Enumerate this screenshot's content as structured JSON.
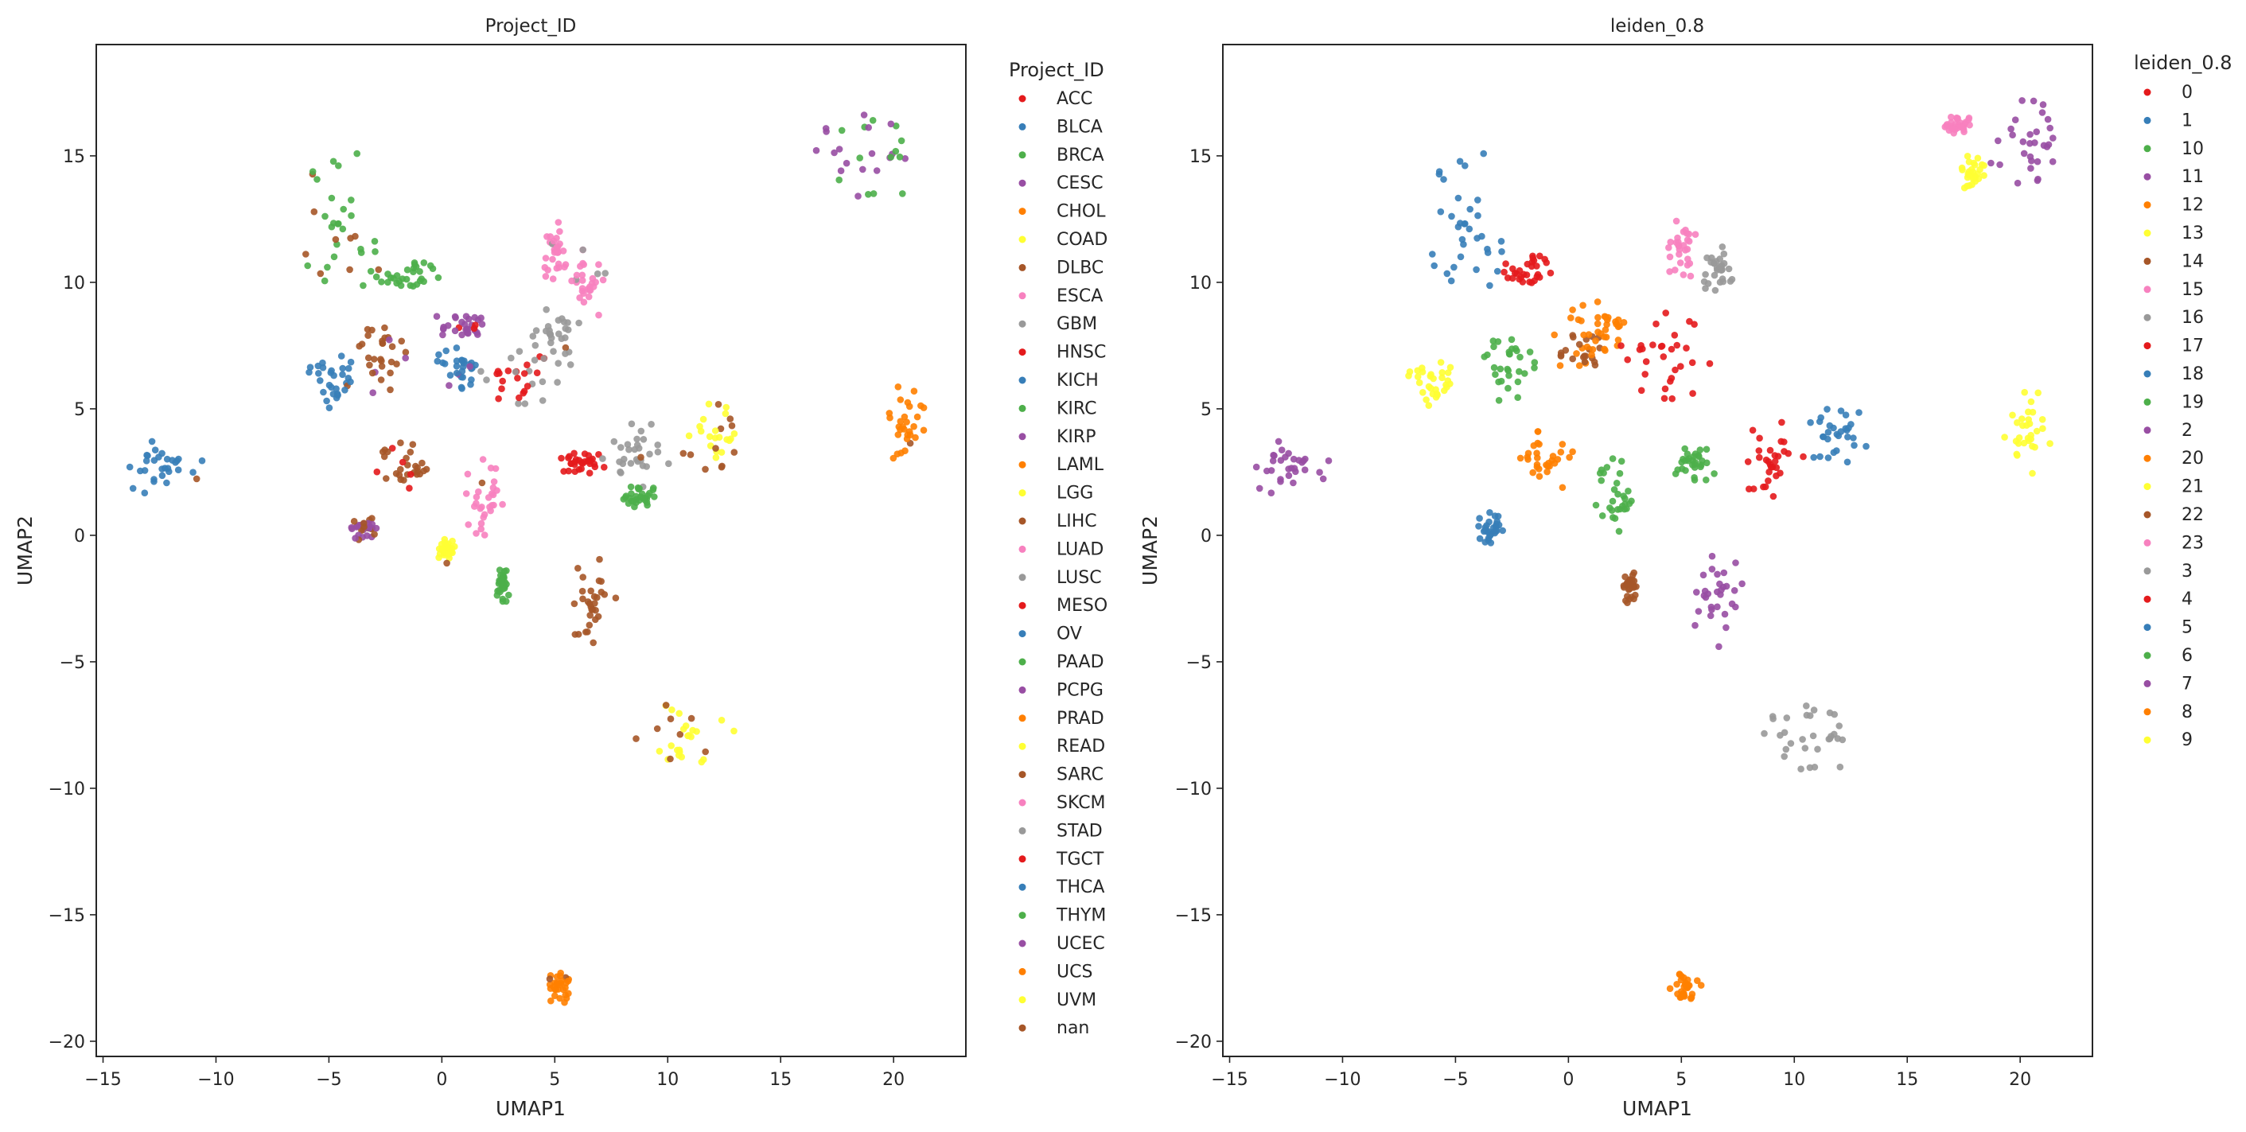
{
  "chart_data": [
    {
      "type": "scatter",
      "title": "Project_ID",
      "xlabel": "UMAP1",
      "ylabel": "UMAP2",
      "xlim": [
        -15.3,
        23.2
      ],
      "ylim": [
        -20.6,
        19.4
      ],
      "xticks": [
        -15,
        -10,
        -5,
        0,
        5,
        10,
        15,
        20
      ],
      "yticks": [
        -20,
        -15,
        -10,
        -5,
        0,
        5,
        10,
        15
      ],
      "xtick_labels": [
        "−15",
        "−10",
        "−5",
        "0",
        "5",
        "10",
        "15",
        "20"
      ],
      "ytick_labels": [
        "−20",
        "−15",
        "−10",
        "−5",
        "0",
        "5",
        "10",
        "15"
      ],
      "grid": false,
      "legend": {
        "title": "Project_ID",
        "placement": "right-outside",
        "entries": [
          {
            "label": "ACC",
            "color": "#e41a1c"
          },
          {
            "label": "BLCA",
            "color": "#377eb8"
          },
          {
            "label": "BRCA",
            "color": "#4daf4a"
          },
          {
            "label": "CESC",
            "color": "#984ea3"
          },
          {
            "label": "CHOL",
            "color": "#ff7f00"
          },
          {
            "label": "COAD",
            "color": "#ffff33"
          },
          {
            "label": "DLBC",
            "color": "#a65628"
          },
          {
            "label": "ESCA",
            "color": "#f781bf"
          },
          {
            "label": "GBM",
            "color": "#999999"
          },
          {
            "label": "HNSC",
            "color": "#e41a1c"
          },
          {
            "label": "KICH",
            "color": "#377eb8"
          },
          {
            "label": "KIRC",
            "color": "#4daf4a"
          },
          {
            "label": "KIRP",
            "color": "#984ea3"
          },
          {
            "label": "LAML",
            "color": "#ff7f00"
          },
          {
            "label": "LGG",
            "color": "#ffff33"
          },
          {
            "label": "LIHC",
            "color": "#a65628"
          },
          {
            "label": "LUAD",
            "color": "#f781bf"
          },
          {
            "label": "LUSC",
            "color": "#999999"
          },
          {
            "label": "MESO",
            "color": "#e41a1c"
          },
          {
            "label": "OV",
            "color": "#377eb8"
          },
          {
            "label": "PAAD",
            "color": "#4daf4a"
          },
          {
            "label": "PCPG",
            "color": "#984ea3"
          },
          {
            "label": "PRAD",
            "color": "#ff7f00"
          },
          {
            "label": "READ",
            "color": "#ffff33"
          },
          {
            "label": "SARC",
            "color": "#a65628"
          },
          {
            "label": "SKCM",
            "color": "#f781bf"
          },
          {
            "label": "STAD",
            "color": "#999999"
          },
          {
            "label": "TGCT",
            "color": "#e41a1c"
          },
          {
            "label": "THCA",
            "color": "#377eb8"
          },
          {
            "label": "THYM",
            "color": "#4daf4a"
          },
          {
            "label": "UCEC",
            "color": "#984ea3"
          },
          {
            "label": "UCS",
            "color": "#ff7f00"
          },
          {
            "label": "UVM",
            "color": "#ffff33"
          },
          {
            "label": "nan",
            "color": "#a65628"
          }
        ]
      },
      "clusters": [
        {
          "x": -12.5,
          "y": 2.8,
          "rx": 1.9,
          "ry": 1.2,
          "color": "#377eb8",
          "accent": "#a65628",
          "accent_share": 0.08
        },
        {
          "x": -4.5,
          "y": 12.3,
          "rx": 1.7,
          "ry": 3.1,
          "color": "#4daf4a",
          "accent": "#a65628",
          "accent_share": 0.18
        },
        {
          "x": -1.5,
          "y": 10.3,
          "rx": 1.6,
          "ry": 0.7,
          "color": "#4daf4a",
          "accent": "#a65628",
          "accent_share": 0.05
        },
        {
          "x": -4.8,
          "y": 6.2,
          "rx": 1.1,
          "ry": 1.2,
          "color": "#377eb8",
          "accent": "#a65628",
          "accent_share": 0.05
        },
        {
          "x": -2.8,
          "y": 7.2,
          "rx": 1.2,
          "ry": 1.6,
          "color": "#a65628",
          "accent": "#984ea3",
          "accent_share": 0.05
        },
        {
          "x": 0.8,
          "y": 8.4,
          "rx": 1.3,
          "ry": 0.6,
          "color": "#984ea3",
          "accent": "#e41a1c",
          "accent_share": 0.1
        },
        {
          "x": 0.8,
          "y": 6.8,
          "rx": 1.0,
          "ry": 1.0,
          "color": "#377eb8",
          "accent": "#984ea3",
          "accent_share": 0.1
        },
        {
          "x": 3.6,
          "y": 6.3,
          "rx": 1.9,
          "ry": 1.1,
          "color": "#e41a1c",
          "accent": "#999999",
          "accent_share": 0.3
        },
        {
          "x": 5.0,
          "y": 7.8,
          "rx": 1.2,
          "ry": 1.3,
          "color": "#999999",
          "accent": "#a65628",
          "accent_share": 0.05
        },
        {
          "x": 5.0,
          "y": 11.2,
          "rx": 0.6,
          "ry": 1.3,
          "color": "#f781bf",
          "accent": "#999999",
          "accent_share": 0.05
        },
        {
          "x": 6.6,
          "y": 10.0,
          "rx": 0.9,
          "ry": 1.4,
          "color": "#f781bf",
          "accent": "#999999",
          "accent_share": 0.15
        },
        {
          "x": -1.5,
          "y": 2.7,
          "rx": 1.4,
          "ry": 1.0,
          "color": "#a65628",
          "accent": "#e41a1c",
          "accent_share": 0.1
        },
        {
          "x": 1.8,
          "y": 1.5,
          "rx": 0.9,
          "ry": 1.5,
          "color": "#f781bf",
          "accent": "#a65628",
          "accent_share": 0.02
        },
        {
          "x": -3.5,
          "y": 0.3,
          "rx": 0.6,
          "ry": 0.5,
          "color": "#984ea3",
          "accent": "#a65628",
          "accent_share": 0.2
        },
        {
          "x": 0.2,
          "y": -0.6,
          "rx": 0.4,
          "ry": 0.5,
          "color": "#ffff33",
          "accent": "#a65628",
          "accent_share": 0.1
        },
        {
          "x": 2.7,
          "y": -2.0,
          "rx": 0.3,
          "ry": 0.7,
          "color": "#4daf4a",
          "accent": "#4daf4a",
          "accent_share": 0
        },
        {
          "x": 6.5,
          "y": -2.6,
          "rx": 1.2,
          "ry": 1.8,
          "color": "#a65628",
          "accent": "#ff7f00",
          "accent_share": 0.02
        },
        {
          "x": 6.2,
          "y": 2.8,
          "rx": 1.0,
          "ry": 0.6,
          "color": "#e41a1c",
          "accent": "#e41a1c",
          "accent_share": 0
        },
        {
          "x": 8.7,
          "y": 3.2,
          "rx": 1.6,
          "ry": 1.4,
          "color": "#999999",
          "accent": "#a65628",
          "accent_share": 0.05
        },
        {
          "x": 12.0,
          "y": 3.7,
          "rx": 1.4,
          "ry": 1.5,
          "color": "#ffff33",
          "accent": "#a65628",
          "accent_share": 0.35
        },
        {
          "x": 8.7,
          "y": 1.5,
          "rx": 1.0,
          "ry": 0.5,
          "color": "#4daf4a",
          "accent": "#4daf4a",
          "accent_share": 0
        },
        {
          "x": 20.4,
          "y": 4.1,
          "rx": 1.1,
          "ry": 1.8,
          "color": "#ff7f00",
          "accent": "#a65628",
          "accent_share": 0.08
        },
        {
          "x": 19.0,
          "y": 15.0,
          "rx": 2.5,
          "ry": 1.8,
          "color": "#4daf4a",
          "accent": "#984ea3",
          "accent_share": 0.45
        },
        {
          "x": 10.8,
          "y": -8.0,
          "rx": 2.2,
          "ry": 1.4,
          "color": "#ffff33",
          "accent": "#a65628",
          "accent_share": 0.2
        },
        {
          "x": 5.2,
          "y": -17.9,
          "rx": 0.7,
          "ry": 0.6,
          "color": "#ff7f00",
          "accent": "#a65628",
          "accent_share": 0.25
        }
      ]
    },
    {
      "type": "scatter",
      "title": "leiden_0.8",
      "xlabel": "UMAP1",
      "ylabel": "UMAP2",
      "xlim": [
        -15.3,
        23.2
      ],
      "ylim": [
        -20.6,
        19.4
      ],
      "xticks": [
        -15,
        -10,
        -5,
        0,
        5,
        10,
        15,
        20
      ],
      "yticks": [
        -20,
        -15,
        -10,
        -5,
        0,
        5,
        10,
        15
      ],
      "xtick_labels": [
        "−15",
        "−10",
        "−5",
        "0",
        "5",
        "10",
        "15",
        "20"
      ],
      "ytick_labels": [
        "−20",
        "−15",
        "−10",
        "−5",
        "0",
        "5",
        "10",
        "15"
      ],
      "grid": false,
      "legend": {
        "title": "leiden_0.8",
        "placement": "right-outside",
        "entries": [
          {
            "label": "0",
            "color": "#e41a1c"
          },
          {
            "label": "1",
            "color": "#377eb8"
          },
          {
            "label": "10",
            "color": "#4daf4a"
          },
          {
            "label": "11",
            "color": "#984ea3"
          },
          {
            "label": "12",
            "color": "#ff7f00"
          },
          {
            "label": "13",
            "color": "#ffff33"
          },
          {
            "label": "14",
            "color": "#a65628"
          },
          {
            "label": "15",
            "color": "#f781bf"
          },
          {
            "label": "16",
            "color": "#999999"
          },
          {
            "label": "17",
            "color": "#e41a1c"
          },
          {
            "label": "18",
            "color": "#377eb8"
          },
          {
            "label": "19",
            "color": "#4daf4a"
          },
          {
            "label": "2",
            "color": "#984ea3"
          },
          {
            "label": "20",
            "color": "#ff7f00"
          },
          {
            "label": "21",
            "color": "#ffff33"
          },
          {
            "label": "22",
            "color": "#a65628"
          },
          {
            "label": "23",
            "color": "#f781bf"
          },
          {
            "label": "3",
            "color": "#999999"
          },
          {
            "label": "4",
            "color": "#e41a1c"
          },
          {
            "label": "5",
            "color": "#377eb8"
          },
          {
            "label": "6",
            "color": "#4daf4a"
          },
          {
            "label": "7",
            "color": "#984ea3"
          },
          {
            "label": "8",
            "color": "#ff7f00"
          },
          {
            "label": "9",
            "color": "#ffff33"
          }
        ]
      },
      "clusters": [
        {
          "x": -12.5,
          "y": 2.8,
          "rx": 1.9,
          "ry": 1.2,
          "color": "#984ea3",
          "accent": "#984ea3",
          "accent_share": 0
        },
        {
          "x": -4.5,
          "y": 12.3,
          "rx": 1.7,
          "ry": 3.1,
          "color": "#377eb8",
          "accent": "#377eb8",
          "accent_share": 0
        },
        {
          "x": -1.8,
          "y": 10.5,
          "rx": 1.2,
          "ry": 0.8,
          "color": "#e41a1c",
          "accent": "#e41a1c",
          "accent_share": 0
        },
        {
          "x": -6.0,
          "y": 6.1,
          "rx": 1.1,
          "ry": 1.0,
          "color": "#ffff33",
          "accent": "#ffff33",
          "accent_share": 0
        },
        {
          "x": -2.8,
          "y": 6.8,
          "rx": 1.3,
          "ry": 1.5,
          "color": "#4daf4a",
          "accent": "#4daf4a",
          "accent_share": 0
        },
        {
          "x": 0.4,
          "y": 7.5,
          "rx": 1.3,
          "ry": 1.0,
          "color": "#a65628",
          "accent": "#ff7f00",
          "accent_share": 0.3
        },
        {
          "x": 1.5,
          "y": 8.5,
          "rx": 1.4,
          "ry": 1.2,
          "color": "#ff7f00",
          "accent": "#ff7f00",
          "accent_share": 0
        },
        {
          "x": 4.5,
          "y": 7.2,
          "rx": 2.2,
          "ry": 1.8,
          "color": "#e41a1c",
          "accent": "#e41a1c",
          "accent_share": 0
        },
        {
          "x": 5.0,
          "y": 11.3,
          "rx": 0.7,
          "ry": 1.3,
          "color": "#f781bf",
          "accent": "#f781bf",
          "accent_share": 0
        },
        {
          "x": 6.6,
          "y": 10.5,
          "rx": 0.8,
          "ry": 1.0,
          "color": "#999999",
          "accent": "#999999",
          "accent_share": 0
        },
        {
          "x": -0.8,
          "y": 3.0,
          "rx": 1.4,
          "ry": 1.2,
          "color": "#ff7f00",
          "accent": "#ff7f00",
          "accent_share": 0
        },
        {
          "x": 2.2,
          "y": 1.5,
          "rx": 1.0,
          "ry": 1.6,
          "color": "#4daf4a",
          "accent": "#4daf4a",
          "accent_share": 0
        },
        {
          "x": -3.5,
          "y": 0.3,
          "rx": 0.6,
          "ry": 0.6,
          "color": "#377eb8",
          "accent": "#377eb8",
          "accent_share": 0
        },
        {
          "x": 2.7,
          "y": -2.0,
          "rx": 0.3,
          "ry": 0.7,
          "color": "#a65628",
          "accent": "#a65628",
          "accent_share": 0
        },
        {
          "x": 6.6,
          "y": -2.5,
          "rx": 1.2,
          "ry": 1.9,
          "color": "#984ea3",
          "accent": "#984ea3",
          "accent_share": 0
        },
        {
          "x": 5.6,
          "y": 2.8,
          "rx": 1.0,
          "ry": 0.7,
          "color": "#4daf4a",
          "accent": "#4daf4a",
          "accent_share": 0
        },
        {
          "x": 8.8,
          "y": 3.0,
          "rx": 1.6,
          "ry": 1.6,
          "color": "#e41a1c",
          "accent": "#e41a1c",
          "accent_share": 0
        },
        {
          "x": 11.9,
          "y": 3.8,
          "rx": 1.3,
          "ry": 1.6,
          "color": "#377eb8",
          "accent": "#377eb8",
          "accent_share": 0
        },
        {
          "x": 20.4,
          "y": 4.1,
          "rx": 1.1,
          "ry": 1.8,
          "color": "#ffff33",
          "accent": "#ffff33",
          "accent_share": 0
        },
        {
          "x": 20.3,
          "y": 15.3,
          "rx": 1.7,
          "ry": 1.9,
          "color": "#984ea3",
          "accent": "#984ea3",
          "accent_share": 0
        },
        {
          "x": 17.2,
          "y": 16.2,
          "rx": 0.8,
          "ry": 0.4,
          "color": "#f781bf",
          "accent": "#f781bf",
          "accent_share": 0
        },
        {
          "x": 17.8,
          "y": 14.2,
          "rx": 0.7,
          "ry": 0.8,
          "color": "#ffff33",
          "accent": "#ffff33",
          "accent_share": 0
        },
        {
          "x": 10.8,
          "y": -8.0,
          "rx": 2.2,
          "ry": 1.4,
          "color": "#999999",
          "accent": "#999999",
          "accent_share": 0
        },
        {
          "x": 5.2,
          "y": -17.9,
          "rx": 0.7,
          "ry": 0.6,
          "color": "#ff7f00",
          "accent": "#ff7f00",
          "accent_share": 0
        }
      ]
    }
  ]
}
